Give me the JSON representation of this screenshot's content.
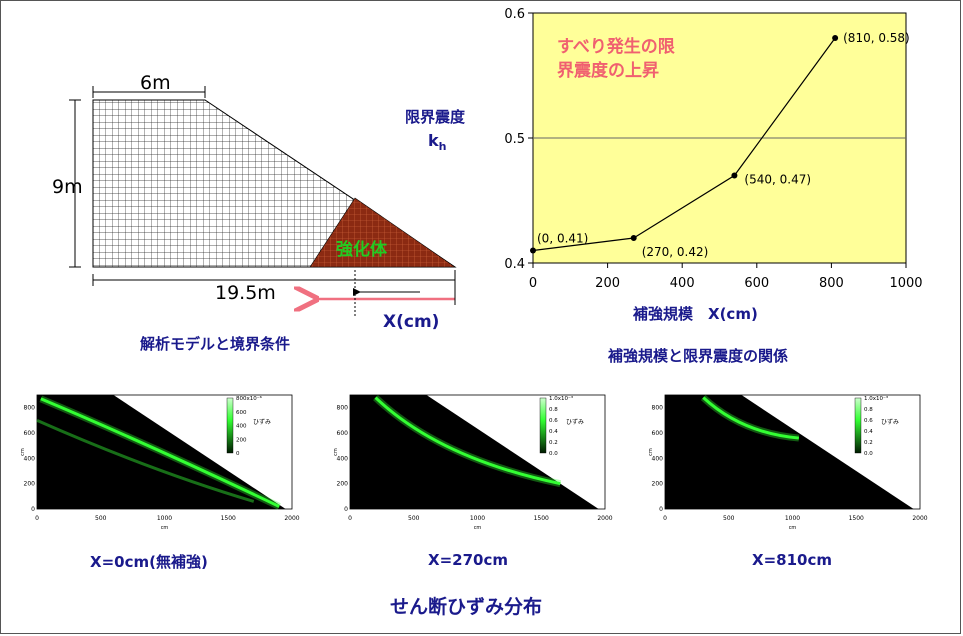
{
  "model": {
    "dim_top": "6m",
    "dim_height": "9m",
    "dim_base": "19.5m",
    "reinforce_label": "強化体",
    "x_label": "X(cm)",
    "caption": "解析モデルと境界条件",
    "colors": {
      "reinforce_fill": "#8b2a12",
      "reinforce_text": "#22cc22",
      "arrow": "#f07080",
      "caption": "#1a1a8c"
    }
  },
  "chart_data": {
    "type": "line",
    "x": [
      0,
      270,
      540,
      810
    ],
    "y": [
      0.41,
      0.42,
      0.47,
      0.58
    ],
    "xlim": [
      0,
      1000
    ],
    "ylim": [
      0.4,
      0.6
    ],
    "xticks": [
      "0",
      "200",
      "400",
      "600",
      "800",
      "1000"
    ],
    "yticks": [
      "0.4",
      "0.5",
      "0.6"
    ],
    "point_labels": [
      "(0, 0.41)",
      "(270, 0.42)",
      "(540, 0.47)",
      "(810, 0.58)"
    ],
    "ylabel_line1": "限界震度",
    "ylabel_line2": "k",
    "ylabel_sub": "h",
    "xlabel": "補強規模　X(cm)",
    "annotation_line1": "すべり発生の限",
    "annotation_line2": "界震度の上昇",
    "caption": "補強規模と限界震度の関係",
    "colors": {
      "plot_bg": "#ffff99",
      "annotation": "#f06070",
      "line": "#000000",
      "gridline": "#666666"
    },
    "grid": "horizontal at 0.5",
    "legend": "none"
  },
  "strain_maps": {
    "axis_unit": "cm",
    "ylabel": "cm",
    "xticks": [
      "0",
      "500",
      "1000",
      "1500",
      "2000"
    ],
    "yticks": [
      "0",
      "200",
      "400",
      "600",
      "800"
    ],
    "colorbar_title": "ひずみ",
    "panels": [
      {
        "caption": "X=0cm(無補強)",
        "colorbar_ticks": [
          "800x10⁻⁶",
          "600",
          "400",
          "200",
          "0"
        ]
      },
      {
        "caption": "X=270cm",
        "colorbar_ticks": [
          "1.0x10⁻³",
          "0.8",
          "0.6",
          "0.4",
          "0.2",
          "0.0"
        ]
      },
      {
        "caption": "X=810cm",
        "colorbar_ticks": [
          "1.0x10⁻³",
          "0.8",
          "0.6",
          "0.4",
          "0.2",
          "0.0"
        ]
      }
    ],
    "colors": {
      "band": "#33ff33",
      "background": "#000000"
    }
  },
  "footer_title": "せん断ひずみ分布"
}
